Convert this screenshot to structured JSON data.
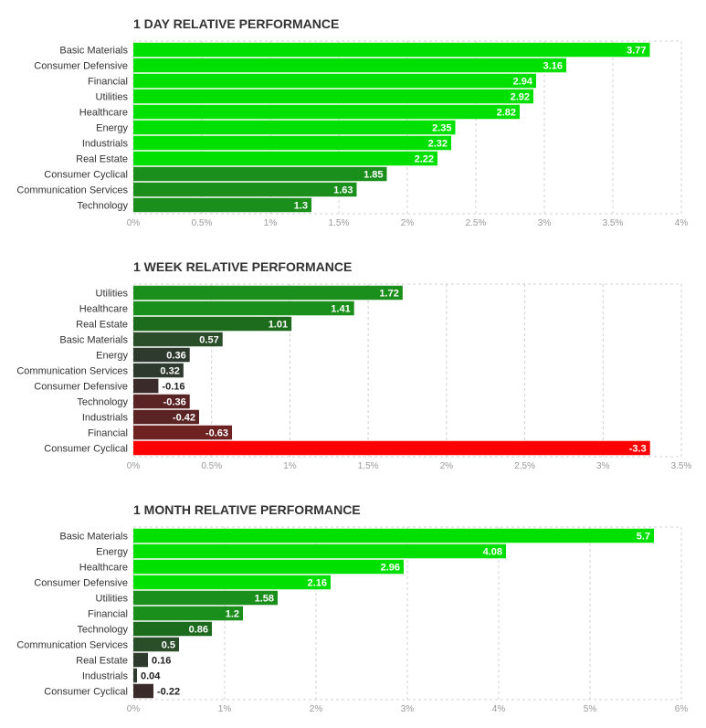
{
  "chart_data": [
    {
      "type": "bar",
      "orientation": "horizontal",
      "title": "1 DAY RELATIVE PERFORMANCE",
      "categories": [
        "Basic Materials",
        "Consumer Defensive",
        "Financial",
        "Utilities",
        "Healthcare",
        "Energy",
        "Industrials",
        "Real Estate",
        "Consumer Cyclical",
        "Communication Services",
        "Technology"
      ],
      "values": [
        3.77,
        3.16,
        2.94,
        2.92,
        2.82,
        2.35,
        2.32,
        2.22,
        1.85,
        1.63,
        1.3
      ],
      "value_labels": [
        "3.77",
        "3.16",
        "2.94",
        "2.92",
        "2.82",
        "2.35",
        "2.32",
        "2.22",
        "1.85",
        "1.63",
        "1.3"
      ],
      "xlim": [
        0,
        4
      ],
      "ticks": [
        0,
        0.5,
        1,
        1.5,
        2,
        2.5,
        3,
        3.5,
        4
      ],
      "tick_labels": [
        "0%",
        "0.5%",
        "1%",
        "1.5%",
        "2%",
        "2.5%",
        "3%",
        "3.5%",
        "4%"
      ],
      "xlabel": "",
      "ylabel": "",
      "grid": true,
      "legend": "none"
    },
    {
      "type": "bar",
      "orientation": "horizontal",
      "title": "1 WEEK RELATIVE PERFORMANCE",
      "categories": [
        "Utilities",
        "Healthcare",
        "Real Estate",
        "Basic Materials",
        "Energy",
        "Communication Services",
        "Consumer Defensive",
        "Technology",
        "Industrials",
        "Financial",
        "Consumer Cyclical"
      ],
      "values": [
        1.72,
        1.41,
        1.01,
        0.57,
        0.36,
        0.32,
        -0.16,
        -0.36,
        -0.42,
        -0.63,
        -3.3
      ],
      "value_labels": [
        "1.72",
        "1.41",
        "1.01",
        "0.57",
        "0.36",
        "0.32",
        "-0.16",
        "-0.36",
        "-0.42",
        "-0.63",
        "-3.3"
      ],
      "xlim": [
        0,
        3.5
      ],
      "ticks": [
        0,
        0.5,
        1,
        1.5,
        2,
        2.5,
        3,
        3.5
      ],
      "tick_labels": [
        "0%",
        "0.5%",
        "1%",
        "1.5%",
        "2%",
        "2.5%",
        "3%",
        "3.5%"
      ],
      "xlabel": "",
      "ylabel": "",
      "grid": true,
      "legend": "none"
    },
    {
      "type": "bar",
      "orientation": "horizontal",
      "title": "1 MONTH RELATIVE PERFORMANCE",
      "categories": [
        "Basic Materials",
        "Energy",
        "Healthcare",
        "Consumer Defensive",
        "Utilities",
        "Financial",
        "Technology",
        "Communication Services",
        "Real Estate",
        "Industrials",
        "Consumer Cyclical"
      ],
      "values": [
        5.7,
        4.08,
        2.96,
        2.16,
        1.58,
        1.2,
        0.86,
        0.5,
        0.16,
        0.04,
        -0.22
      ],
      "value_labels": [
        "5.7",
        "4.08",
        "2.96",
        "2.16",
        "1.58",
        "1.2",
        "0.86",
        "0.5",
        "0.16",
        "0.04",
        "-0.22"
      ],
      "xlim": [
        0,
        6
      ],
      "ticks": [
        0,
        1,
        2,
        3,
        4,
        5,
        6
      ],
      "tick_labels": [
        "0%",
        "1%",
        "2%",
        "3%",
        "4%",
        "5%",
        "6%"
      ],
      "xlabel": "",
      "ylabel": "",
      "grid": true,
      "legend": "none"
    }
  ],
  "colors": {
    "bar_positive_1": "#00e000",
    "bar_positive_2": "#1b8f1b",
    "bar_positive_3": "#1d6b1d",
    "bar_positive_4": "#2a4d2a",
    "bar_positive_5": "#2f3a2f",
    "bar_negative_1": "#3a2a2a",
    "bar_negative_2": "#5a2424",
    "bar_negative_3": "#6e2222",
    "bar_negative_4": "#ff0000",
    "grid": "#d0d0d0",
    "tick_text": "#999999"
  }
}
